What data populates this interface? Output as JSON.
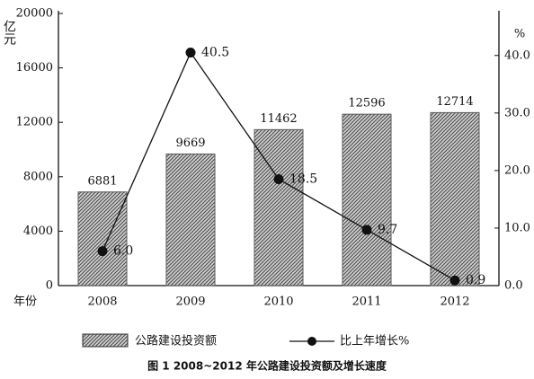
{
  "chart_data": {
    "type": "bar",
    "title": "图 1 2008~2012 年公路建设投资额及增长速度",
    "y_label": "亿元",
    "y2_label": "%",
    "x_label": "年份",
    "categories": [
      "2008",
      "2009",
      "2010",
      "2011",
      "2012"
    ],
    "series": [
      {
        "name": "公路建设投资额",
        "type": "bar",
        "color": "#555555",
        "values": [
          6881,
          9669,
          11462,
          12596,
          12714
        ]
      },
      {
        "name": "比上年增长%",
        "type": "line",
        "axis": "y2",
        "color": "#111111",
        "values": [
          6.0,
          40.5,
          18.5,
          9.7,
          0.9
        ],
        "value_labels": [
          "6.0",
          "40.5",
          "18.5",
          "9.7",
          "0.9"
        ]
      }
    ],
    "ylim": [
      0,
      20000
    ],
    "yticks": [
      0,
      4000,
      8000,
      12000,
      16000,
      20000
    ],
    "y2lim": [
      0,
      47.3
    ],
    "y2ticks": [
      {
        "value": 0,
        "label": "0.0"
      },
      {
        "value": 10,
        "label": "10.0"
      },
      {
        "value": 20,
        "label": "20.0"
      },
      {
        "value": 30,
        "label": "30.0"
      },
      {
        "value": 40,
        "label": "40.0"
      }
    ],
    "grid": false
  }
}
